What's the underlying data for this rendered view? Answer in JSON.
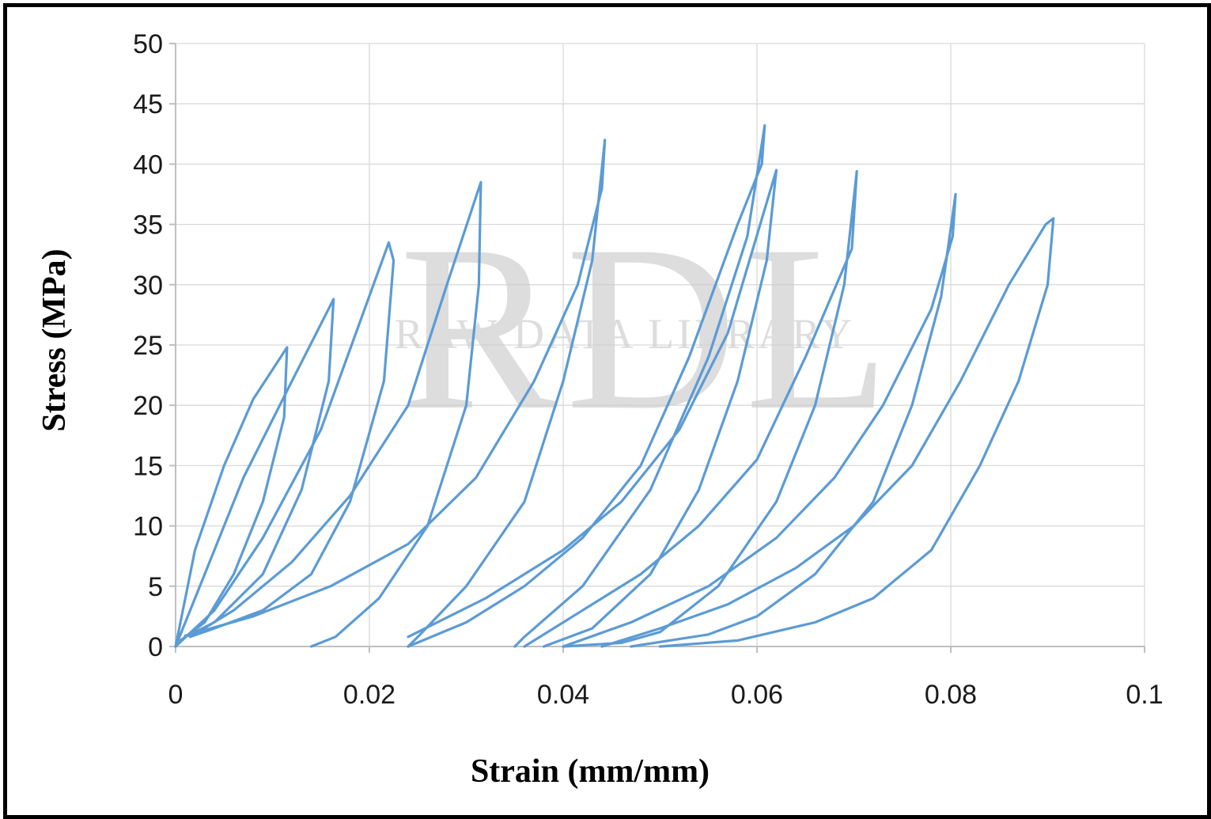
{
  "chart_data": {
    "type": "line",
    "title": "",
    "xlabel": "Strain (mm/mm)",
    "ylabel": "Stress  (MPa)",
    "xlim": [
      0,
      0.1
    ],
    "ylim": [
      0,
      50
    ],
    "xticks": [
      "0",
      "0.02",
      "0.04",
      "0.06",
      "0.08",
      "0.1"
    ],
    "yticks": [
      "0",
      "5",
      "10",
      "15",
      "20",
      "25",
      "30",
      "35",
      "40",
      "45",
      "50"
    ],
    "grid": true,
    "legend": "none",
    "line_color": "#5b9bd5",
    "watermark": [
      "RDL",
      "RAW DATA LIBRARY"
    ],
    "series": [
      {
        "x": [
          0,
          0.002,
          0.005,
          0.008,
          0.0115,
          0.0112,
          0.009,
          0.006,
          0.003,
          0.0005
        ],
        "y": [
          0,
          8,
          15,
          20.5,
          24.8,
          19,
          12,
          6,
          2,
          0.5
        ]
      },
      {
        "x": [
          0,
          0.003,
          0.007,
          0.012,
          0.0163,
          0.0158,
          0.013,
          0.009,
          0.004,
          0.001
        ],
        "y": [
          0,
          6,
          14,
          22,
          28.8,
          22,
          13,
          6,
          2,
          0.8
        ]
      },
      {
        "x": [
          0,
          0.004,
          0.009,
          0.015,
          0.022,
          0.0225,
          0.0215,
          0.018,
          0.014,
          0.009,
          0.004,
          0.0015
        ],
        "y": [
          0,
          3,
          9,
          18,
          33.5,
          32,
          22,
          12,
          6,
          3,
          1.5,
          0.8
        ]
      },
      {
        "x": [
          0.0015,
          0.006,
          0.012,
          0.018,
          0.024,
          0.028,
          0.0315,
          0.0313,
          0.03,
          0.026,
          0.021,
          0.0165,
          0.014
        ],
        "y": [
          0.8,
          3,
          7,
          12.5,
          20,
          30,
          38.5,
          30,
          20,
          10,
          4,
          0.8,
          0
        ]
      },
      {
        "x": [
          0.001,
          0.008,
          0.016,
          0.024,
          0.031,
          0.037,
          0.0415,
          0.044,
          0.0443,
          0.043,
          0.04,
          0.036,
          0.03,
          0.025,
          0.024
        ],
        "y": [
          0.9,
          2.5,
          5,
          8.5,
          14,
          22,
          30,
          38,
          42,
          32,
          22,
          12,
          5,
          0.8,
          0
        ]
      },
      {
        "x": [
          0.024,
          0.03,
          0.036,
          0.042,
          0.048,
          0.053,
          0.058,
          0.0605,
          0.0608,
          0.059,
          0.055,
          0.049,
          0.042,
          0.036,
          0.035
        ],
        "y": [
          0,
          2,
          5,
          9,
          15,
          24,
          35,
          40,
          43.2,
          34,
          24,
          13,
          5,
          0.8,
          0
        ]
      },
      {
        "x": [
          0.024,
          0.032,
          0.04,
          0.046,
          0.052,
          0.057,
          0.062,
          0.061,
          0.058,
          0.054,
          0.049,
          0.043,
          0.038
        ],
        "y": [
          0.8,
          4,
          8,
          12,
          18,
          26,
          39.5,
          32,
          22,
          13,
          6,
          1.5,
          0
        ]
      },
      {
        "x": [
          0.036,
          0.042,
          0.048,
          0.054,
          0.06,
          0.065,
          0.0698,
          0.0703,
          0.069,
          0.066,
          0.062,
          0.056,
          0.05,
          0.046,
          0.04
        ],
        "y": [
          0,
          3,
          6,
          10,
          15.5,
          24,
          33,
          39.4,
          30,
          20,
          12,
          5,
          1.2,
          0.3,
          0
        ]
      },
      {
        "x": [
          0.04,
          0.047,
          0.055,
          0.062,
          0.068,
          0.073,
          0.078,
          0.0802,
          0.0805,
          0.079,
          0.076,
          0.072,
          0.066,
          0.06,
          0.055,
          0.047
        ],
        "y": [
          0,
          2,
          5,
          9,
          14,
          20,
          28,
          34,
          37.5,
          29,
          20,
          12,
          6,
          2.5,
          1,
          0
        ]
      },
      {
        "x": [
          0.044,
          0.05,
          0.057,
          0.064,
          0.07,
          0.076,
          0.081,
          0.086,
          0.0898,
          0.0906,
          0.09,
          0.087,
          0.083,
          0.078,
          0.072,
          0.066,
          0.058,
          0.05
        ],
        "y": [
          0,
          1.5,
          3.5,
          6.5,
          10,
          15,
          22,
          30,
          35,
          35.5,
          30,
          22,
          15,
          8,
          4,
          2,
          0.5,
          0
        ]
      }
    ]
  }
}
